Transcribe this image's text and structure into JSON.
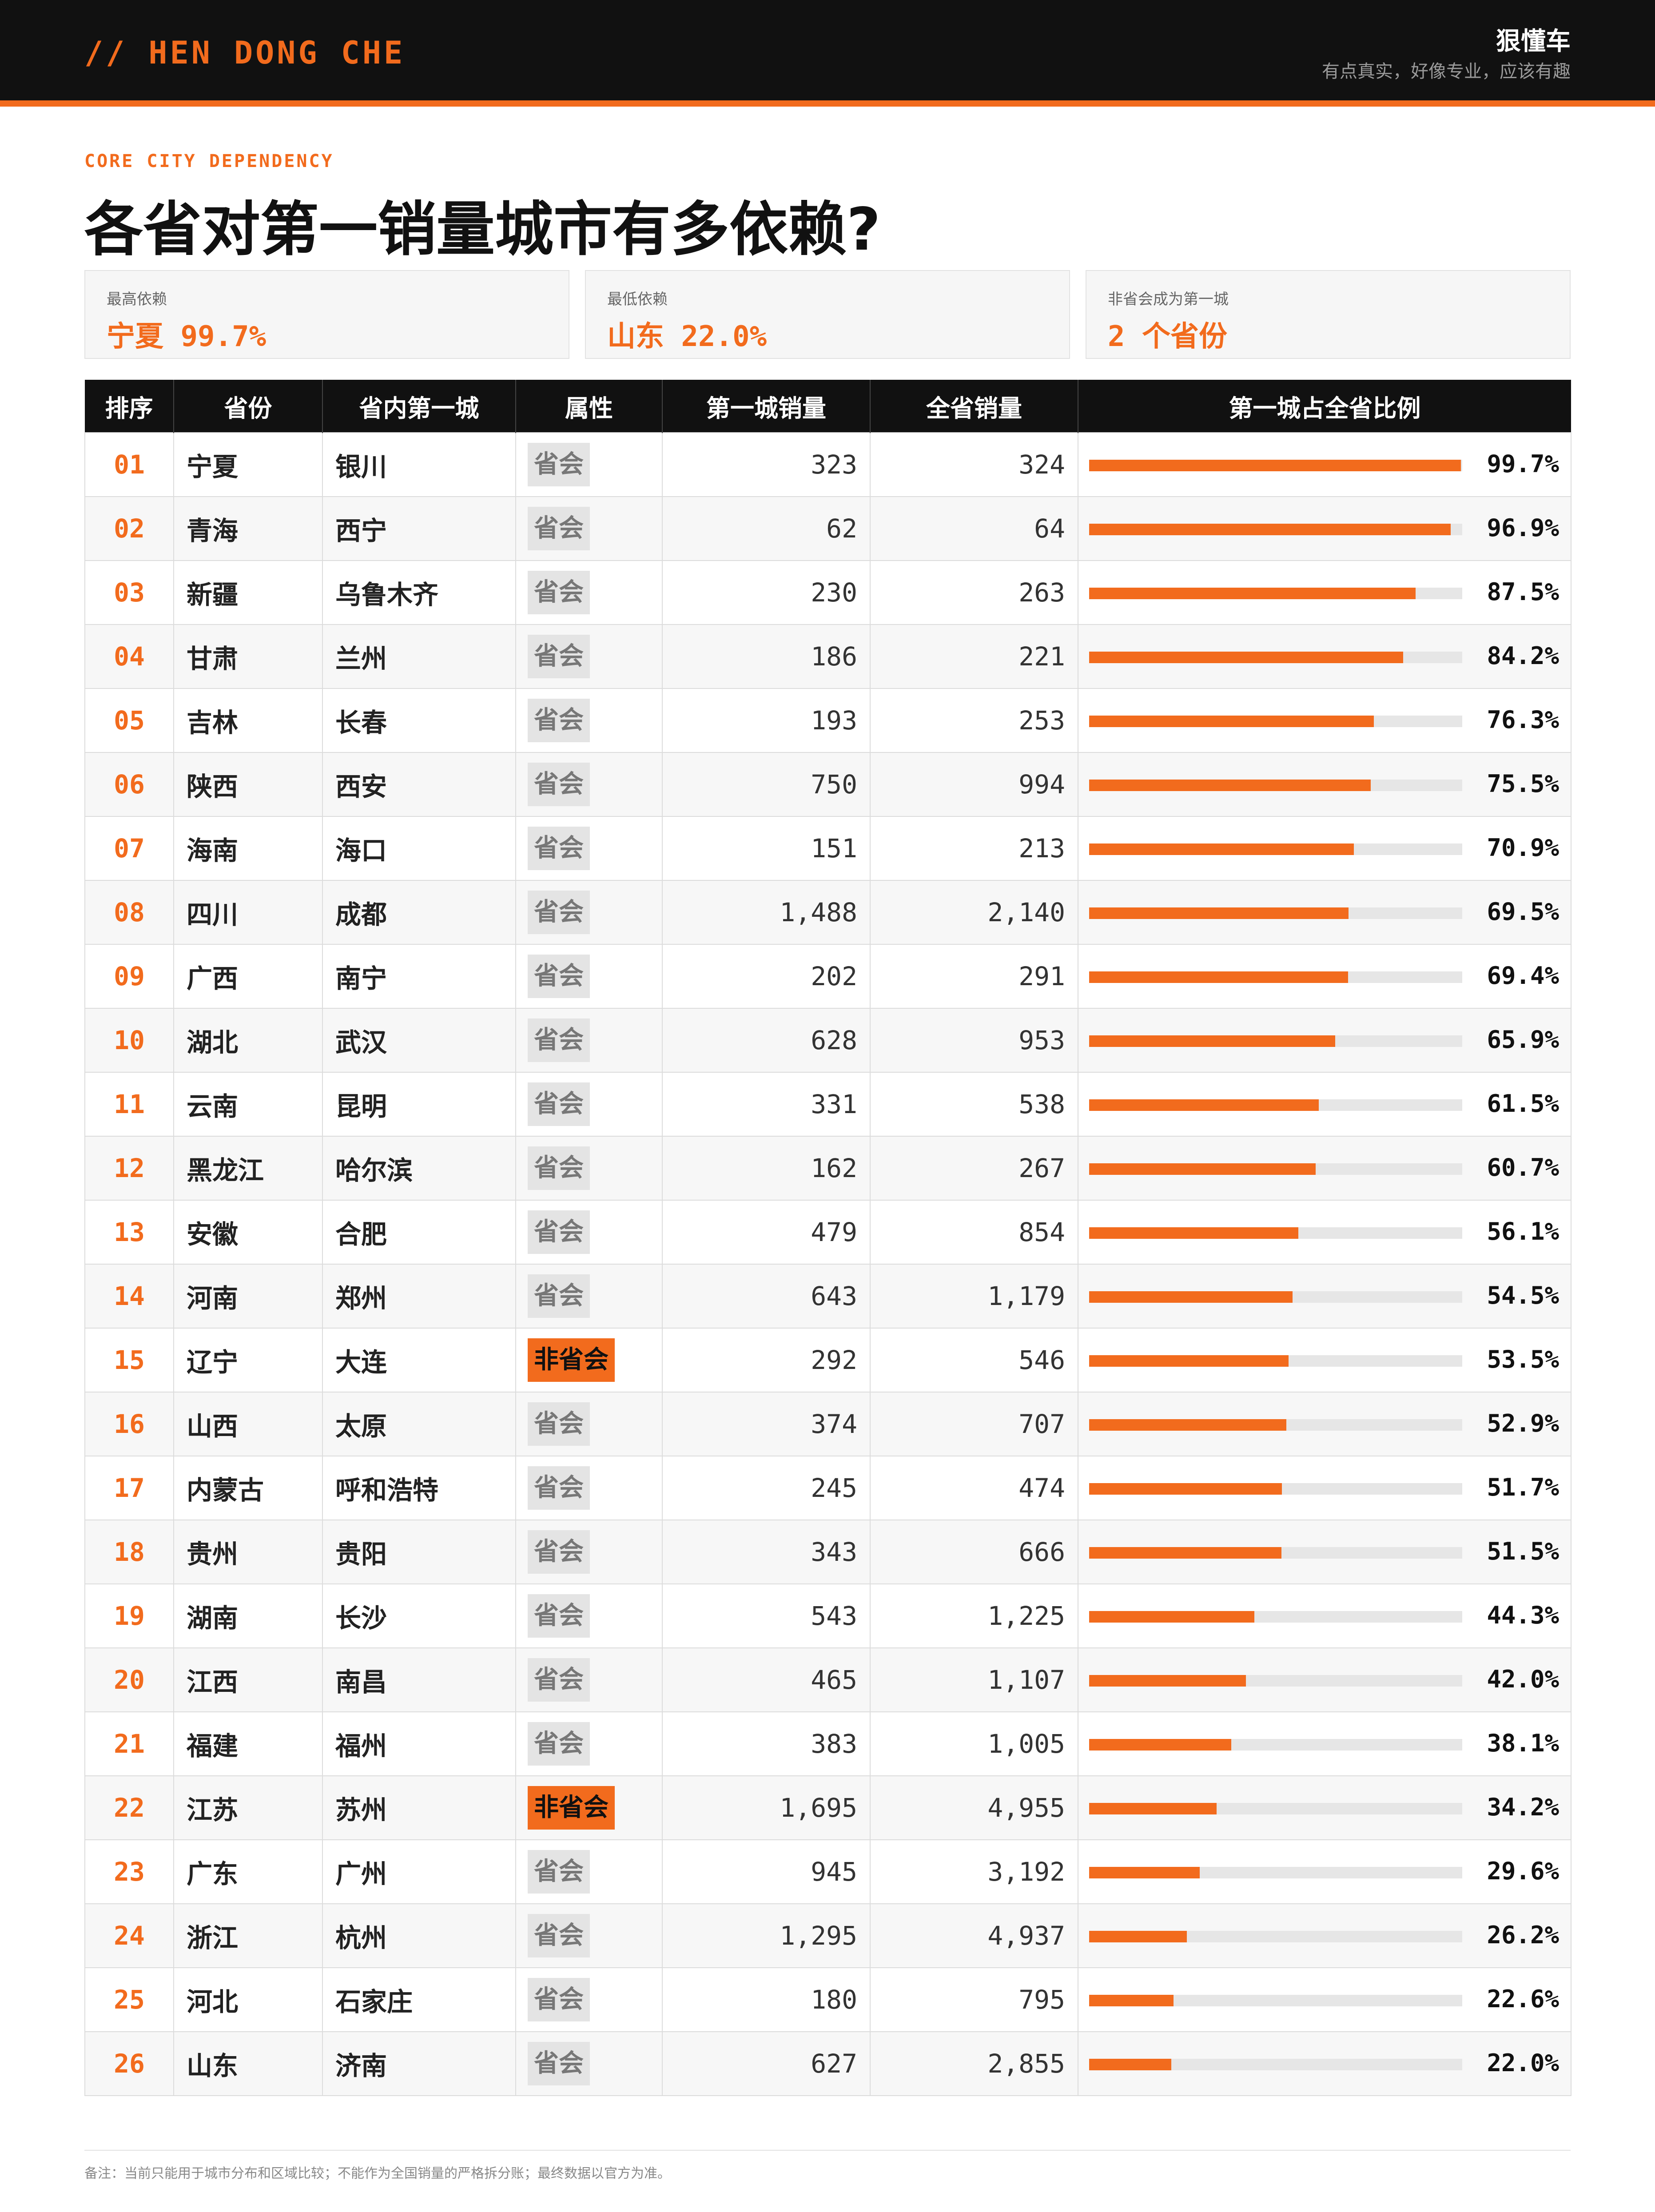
{
  "brand": {
    "en": "// HEN DONG CHE",
    "cn": "狠懂车",
    "slogan": "有点真实，好像专业，应该有趣"
  },
  "kicker": "CORE CITY DEPENDENCY",
  "title": "各省对第一销量城市有多依赖?",
  "cards": [
    {
      "label": "最高依赖",
      "value": "宁夏 99.7%"
    },
    {
      "label": "最低依赖",
      "value": "山东 22.0%"
    },
    {
      "label": "非省会成为第一城",
      "value": "2 个省份"
    }
  ],
  "table": {
    "headers": [
      "排序",
      "省份",
      "省内第一城",
      "属性",
      "第一城销量",
      "全省销量",
      "第一城占全省比例"
    ],
    "rows": [
      {
        "rank": "01",
        "province": "宁夏",
        "city": "银川",
        "attr": "省会",
        "city_sales": "323",
        "prov_sales": "324",
        "pct": "99.7%",
        "ratio": 99.7
      },
      {
        "rank": "02",
        "province": "青海",
        "city": "西宁",
        "attr": "省会",
        "city_sales": "62",
        "prov_sales": "64",
        "pct": "96.9%",
        "ratio": 96.9
      },
      {
        "rank": "03",
        "province": "新疆",
        "city": "乌鲁木齐",
        "attr": "省会",
        "city_sales": "230",
        "prov_sales": "263",
        "pct": "87.5%",
        "ratio": 87.5
      },
      {
        "rank": "04",
        "province": "甘肃",
        "city": "兰州",
        "attr": "省会",
        "city_sales": "186",
        "prov_sales": "221",
        "pct": "84.2%",
        "ratio": 84.2
      },
      {
        "rank": "05",
        "province": "吉林",
        "city": "长春",
        "attr": "省会",
        "city_sales": "193",
        "prov_sales": "253",
        "pct": "76.3%",
        "ratio": 76.3
      },
      {
        "rank": "06",
        "province": "陕西",
        "city": "西安",
        "attr": "省会",
        "city_sales": "750",
        "prov_sales": "994",
        "pct": "75.5%",
        "ratio": 75.5
      },
      {
        "rank": "07",
        "province": "海南",
        "city": "海口",
        "attr": "省会",
        "city_sales": "151",
        "prov_sales": "213",
        "pct": "70.9%",
        "ratio": 70.9
      },
      {
        "rank": "08",
        "province": "四川",
        "city": "成都",
        "attr": "省会",
        "city_sales": "1,488",
        "prov_sales": "2,140",
        "pct": "69.5%",
        "ratio": 69.5
      },
      {
        "rank": "09",
        "province": "广西",
        "city": "南宁",
        "attr": "省会",
        "city_sales": "202",
        "prov_sales": "291",
        "pct": "69.4%",
        "ratio": 69.4
      },
      {
        "rank": "10",
        "province": "湖北",
        "city": "武汉",
        "attr": "省会",
        "city_sales": "628",
        "prov_sales": "953",
        "pct": "65.9%",
        "ratio": 65.9
      },
      {
        "rank": "11",
        "province": "云南",
        "city": "昆明",
        "attr": "省会",
        "city_sales": "331",
        "prov_sales": "538",
        "pct": "61.5%",
        "ratio": 61.5
      },
      {
        "rank": "12",
        "province": "黑龙江",
        "city": "哈尔滨",
        "attr": "省会",
        "city_sales": "162",
        "prov_sales": "267",
        "pct": "60.7%",
        "ratio": 60.7
      },
      {
        "rank": "13",
        "province": "安徽",
        "city": "合肥",
        "attr": "省会",
        "city_sales": "479",
        "prov_sales": "854",
        "pct": "56.1%",
        "ratio": 56.1
      },
      {
        "rank": "14",
        "province": "河南",
        "city": "郑州",
        "attr": "省会",
        "city_sales": "643",
        "prov_sales": "1,179",
        "pct": "54.5%",
        "ratio": 54.5
      },
      {
        "rank": "15",
        "province": "辽宁",
        "city": "大连",
        "attr": "非省会",
        "city_sales": "292",
        "prov_sales": "546",
        "pct": "53.5%",
        "ratio": 53.5
      },
      {
        "rank": "16",
        "province": "山西",
        "city": "太原",
        "attr": "省会",
        "city_sales": "374",
        "prov_sales": "707",
        "pct": "52.9%",
        "ratio": 52.9
      },
      {
        "rank": "17",
        "province": "内蒙古",
        "city": "呼和浩特",
        "attr": "省会",
        "city_sales": "245",
        "prov_sales": "474",
        "pct": "51.7%",
        "ratio": 51.7
      },
      {
        "rank": "18",
        "province": "贵州",
        "city": "贵阳",
        "attr": "省会",
        "city_sales": "343",
        "prov_sales": "666",
        "pct": "51.5%",
        "ratio": 51.5
      },
      {
        "rank": "19",
        "province": "湖南",
        "city": "长沙",
        "attr": "省会",
        "city_sales": "543",
        "prov_sales": "1,225",
        "pct": "44.3%",
        "ratio": 44.3
      },
      {
        "rank": "20",
        "province": "江西",
        "city": "南昌",
        "attr": "省会",
        "city_sales": "465",
        "prov_sales": "1,107",
        "pct": "42.0%",
        "ratio": 42.0
      },
      {
        "rank": "21",
        "province": "福建",
        "city": "福州",
        "attr": "省会",
        "city_sales": "383",
        "prov_sales": "1,005",
        "pct": "38.1%",
        "ratio": 38.1
      },
      {
        "rank": "22",
        "province": "江苏",
        "city": "苏州",
        "attr": "非省会",
        "city_sales": "1,695",
        "prov_sales": "4,955",
        "pct": "34.2%",
        "ratio": 34.2
      },
      {
        "rank": "23",
        "province": "广东",
        "city": "广州",
        "attr": "省会",
        "city_sales": "945",
        "prov_sales": "3,192",
        "pct": "29.6%",
        "ratio": 29.6
      },
      {
        "rank": "24",
        "province": "浙江",
        "city": "杭州",
        "attr": "省会",
        "city_sales": "1,295",
        "prov_sales": "4,937",
        "pct": "26.2%",
        "ratio": 26.2
      },
      {
        "rank": "25",
        "province": "河北",
        "city": "石家庄",
        "attr": "省会",
        "city_sales": "180",
        "prov_sales": "795",
        "pct": "22.6%",
        "ratio": 22.6
      },
      {
        "rank": "26",
        "province": "山东",
        "city": "济南",
        "attr": "省会",
        "city_sales": "627",
        "prov_sales": "2,855",
        "pct": "22.0%",
        "ratio": 22.0
      }
    ]
  },
  "footnote": "备注：当前只能用于城市分布和区域比较；不能作为全国销量的严格拆分账；最终数据以官方为准。",
  "colors": {
    "accent": "#f26b1d",
    "dark": "#111111",
    "capital_tag": "#e4e4e4"
  }
}
